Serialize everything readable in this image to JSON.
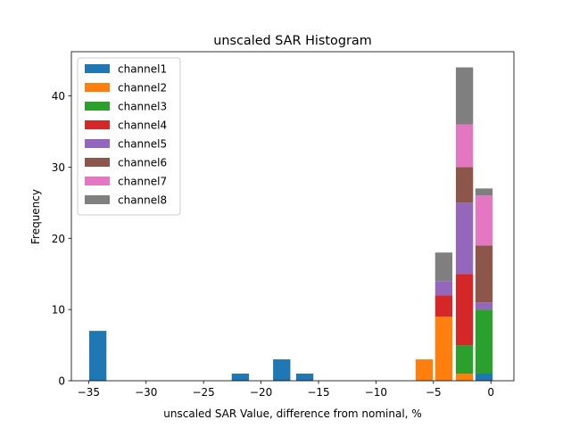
{
  "chart_data": {
    "type": "bar",
    "stacked": true,
    "title": "unscaled SAR Histogram",
    "xlabel": "unscaled SAR Value, difference from nominal, %",
    "ylabel": "Frequency",
    "xlim": [
      -36.5,
      2
    ],
    "ylim": [
      0,
      46.2
    ],
    "xticks": [
      -35,
      -30,
      -25,
      -20,
      -15,
      -10,
      -5,
      0
    ],
    "xtick_labels": [
      "−35",
      "−30",
      "−25",
      "−20",
      "−15",
      "−10",
      "−5",
      "0"
    ],
    "yticks": [
      0,
      10,
      20,
      30,
      40
    ],
    "ytick_labels": [
      "0",
      "10",
      "20",
      "30",
      "40"
    ],
    "bar_width": 1.5,
    "bins": [
      -34.2,
      -21.8,
      -18.2,
      -16.2,
      -5.8,
      -4.1,
      -2.3,
      -0.6
    ],
    "legend_position": "upper-left",
    "series": [
      {
        "name": "channel1",
        "color": "#1f77b4",
        "values": [
          7,
          1,
          3,
          1,
          0,
          0,
          0,
          1
        ]
      },
      {
        "name": "channel2",
        "color": "#ff7f0e",
        "values": [
          0,
          0,
          0,
          0,
          3,
          9,
          1,
          0
        ]
      },
      {
        "name": "channel3",
        "color": "#2ca02c",
        "values": [
          0,
          0,
          0,
          0,
          0,
          0,
          4,
          9
        ]
      },
      {
        "name": "channel4",
        "color": "#d62728",
        "values": [
          0,
          0,
          0,
          0,
          0,
          3,
          10,
          0
        ]
      },
      {
        "name": "channel5",
        "color": "#9467bd",
        "values": [
          0,
          0,
          0,
          0,
          0,
          2,
          10,
          1
        ]
      },
      {
        "name": "channel6",
        "color": "#8c564b",
        "values": [
          0,
          0,
          0,
          0,
          0,
          0,
          5,
          8
        ]
      },
      {
        "name": "channel7",
        "color": "#e377c2",
        "values": [
          0,
          0,
          0,
          0,
          0,
          0,
          6,
          7
        ]
      },
      {
        "name": "channel8",
        "color": "#7f7f7f",
        "values": [
          0,
          0,
          0,
          0,
          0,
          4,
          8,
          1
        ]
      }
    ]
  }
}
